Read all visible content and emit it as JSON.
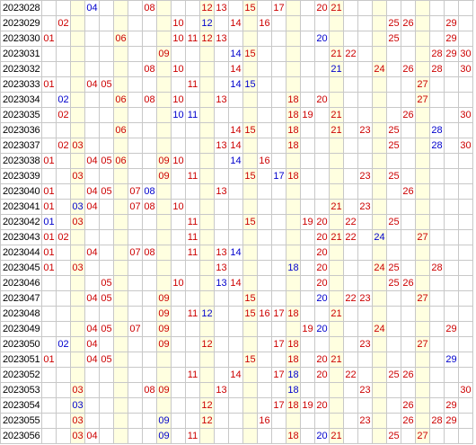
{
  "colors": {
    "red_ball": "#cc0000",
    "blue_ball": "#0000cc",
    "issue_text": "#000000",
    "grid_line": "#c8c8c8",
    "column_shade": "#ffffe0",
    "background": "#ffffff"
  },
  "shaded_columns": [
    3,
    6,
    9,
    12,
    15,
    18,
    21,
    24,
    27
  ],
  "rows": [
    {
      "issue": "2023028",
      "red": [
        "08",
        "12",
        "13",
        "15",
        "17",
        "20",
        "21"
      ],
      "blue": [
        "04"
      ]
    },
    {
      "issue": "2023029",
      "red": [
        "02",
        "10",
        "14",
        "16",
        "25",
        "26",
        "29"
      ],
      "blue": [
        "12"
      ]
    },
    {
      "issue": "2023030",
      "red": [
        "01",
        "06",
        "10",
        "11",
        "12",
        "13",
        "25",
        "29"
      ],
      "blue": [
        "20"
      ]
    },
    {
      "issue": "2023031",
      "red": [
        "09",
        "15",
        "21",
        "22",
        "28",
        "29",
        "30"
      ],
      "blue": [
        "14"
      ]
    },
    {
      "issue": "2023032",
      "red": [
        "08",
        "10",
        "14",
        "24",
        "26",
        "28",
        "30"
      ],
      "blue": [
        "21"
      ]
    },
    {
      "issue": "2023033",
      "red": [
        "01",
        "04",
        "05",
        "11",
        "27"
      ],
      "blue": [
        "14",
        "15"
      ]
    },
    {
      "issue": "2023034",
      "red": [
        "06",
        "08",
        "10",
        "13",
        "18",
        "20",
        "27"
      ],
      "blue": [
        "02"
      ]
    },
    {
      "issue": "2023035",
      "red": [
        "02",
        "18",
        "19",
        "21",
        "26",
        "30"
      ],
      "blue": [
        "10",
        "11"
      ]
    },
    {
      "issue": "2023036",
      "red": [
        "06",
        "14",
        "15",
        "18",
        "21",
        "23",
        "25"
      ],
      "blue": [
        "28"
      ]
    },
    {
      "issue": "2023037",
      "red": [
        "02",
        "03",
        "13",
        "14",
        "18",
        "25",
        "30"
      ],
      "blue": [
        "28"
      ]
    },
    {
      "issue": "2023038",
      "red": [
        "01",
        "04",
        "05",
        "06",
        "09",
        "10",
        "16"
      ],
      "blue": [
        "14"
      ]
    },
    {
      "issue": "2023039",
      "red": [
        "03",
        "09",
        "11",
        "15",
        "18",
        "23",
        "25"
      ],
      "blue": [
        "17"
      ]
    },
    {
      "issue": "2023040",
      "red": [
        "01",
        "04",
        "05",
        "07",
        "13",
        "26"
      ],
      "blue": [
        "08"
      ]
    },
    {
      "issue": "2023041",
      "red": [
        "01",
        "04",
        "07",
        "08",
        "10",
        "21",
        "23"
      ],
      "blue": [
        "03"
      ]
    },
    {
      "issue": "2023042",
      "red": [
        "03",
        "11",
        "15",
        "19",
        "20",
        "22",
        "25"
      ],
      "blue": [
        "01"
      ]
    },
    {
      "issue": "2023043",
      "red": [
        "01",
        "02",
        "11",
        "20",
        "21",
        "22",
        "27"
      ],
      "blue": [
        "24"
      ]
    },
    {
      "issue": "2023044",
      "red": [
        "01",
        "04",
        "07",
        "08",
        "11",
        "13",
        "20"
      ],
      "blue": [
        "14"
      ]
    },
    {
      "issue": "2023045",
      "red": [
        "01",
        "03",
        "13",
        "20",
        "24",
        "25",
        "28"
      ],
      "blue": [
        "18"
      ]
    },
    {
      "issue": "2023046",
      "red": [
        "05",
        "10",
        "14",
        "20",
        "25",
        "26"
      ],
      "blue": [
        "13"
      ]
    },
    {
      "issue": "2023047",
      "red": [
        "04",
        "05",
        "09",
        "15",
        "22",
        "23",
        "27"
      ],
      "blue": [
        "20"
      ]
    },
    {
      "issue": "2023048",
      "red": [
        "09",
        "11",
        "15",
        "16",
        "17",
        "18",
        "21"
      ],
      "blue": [
        "12"
      ]
    },
    {
      "issue": "2023049",
      "red": [
        "04",
        "05",
        "07",
        "09",
        "19",
        "24",
        "29"
      ],
      "blue": [
        "20"
      ]
    },
    {
      "issue": "2023050",
      "red": [
        "04",
        "09",
        "12",
        "17",
        "18",
        "23",
        "27"
      ],
      "blue": [
        "02"
      ]
    },
    {
      "issue": "2023051",
      "red": [
        "01",
        "04",
        "05",
        "15",
        "18",
        "20",
        "21"
      ],
      "blue": [
        "29"
      ]
    },
    {
      "issue": "2023052",
      "red": [
        "11",
        "14",
        "17",
        "20",
        "22",
        "25",
        "26"
      ],
      "blue": [
        "18"
      ]
    },
    {
      "issue": "2023053",
      "red": [
        "03",
        "08",
        "09",
        "13",
        "23",
        "30"
      ],
      "blue": [
        "18"
      ]
    },
    {
      "issue": "2023054",
      "red": [
        "12",
        "17",
        "18",
        "19",
        "20",
        "26",
        "29"
      ],
      "blue": [
        "03"
      ]
    },
    {
      "issue": "2023055",
      "red": [
        "03",
        "12",
        "16",
        "23",
        "26",
        "28",
        "29"
      ],
      "blue": [
        "09"
      ]
    },
    {
      "issue": "2023056",
      "red": [
        "03",
        "04",
        "11",
        "18",
        "21",
        "25",
        "27"
      ],
      "blue": [
        "09",
        "20"
      ]
    }
  ]
}
